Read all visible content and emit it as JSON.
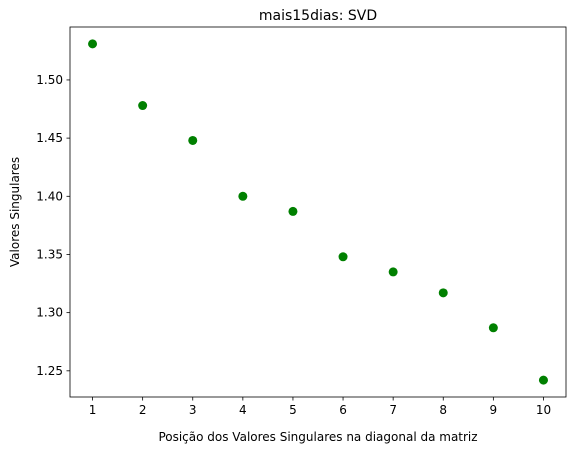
{
  "chart_data": {
    "type": "scatter",
    "title": "mais15dias: SVD",
    "xlabel": "Posição dos Valores Singulares na diagonal da matriz",
    "ylabel": "Valores Singulares",
    "x": [
      1,
      2,
      3,
      4,
      5,
      6,
      7,
      8,
      9,
      10
    ],
    "y": [
      1.531,
      1.478,
      1.448,
      1.4,
      1.387,
      1.348,
      1.335,
      1.317,
      1.287,
      1.242
    ],
    "xlim": [
      0.55,
      10.45
    ],
    "ylim": [
      1.2275,
      1.5455
    ],
    "xticks": [
      1,
      2,
      3,
      4,
      5,
      6,
      7,
      8,
      9,
      10
    ],
    "xtick_labels": [
      "1",
      "2",
      "3",
      "4",
      "5",
      "6",
      "7",
      "8",
      "9",
      "10"
    ],
    "yticks": [
      1.25,
      1.3,
      1.35,
      1.4,
      1.45,
      1.5
    ],
    "ytick_labels": [
      "1.25",
      "1.30",
      "1.35",
      "1.40",
      "1.45",
      "1.50"
    ],
    "grid": false,
    "marker_color": "#008000"
  }
}
